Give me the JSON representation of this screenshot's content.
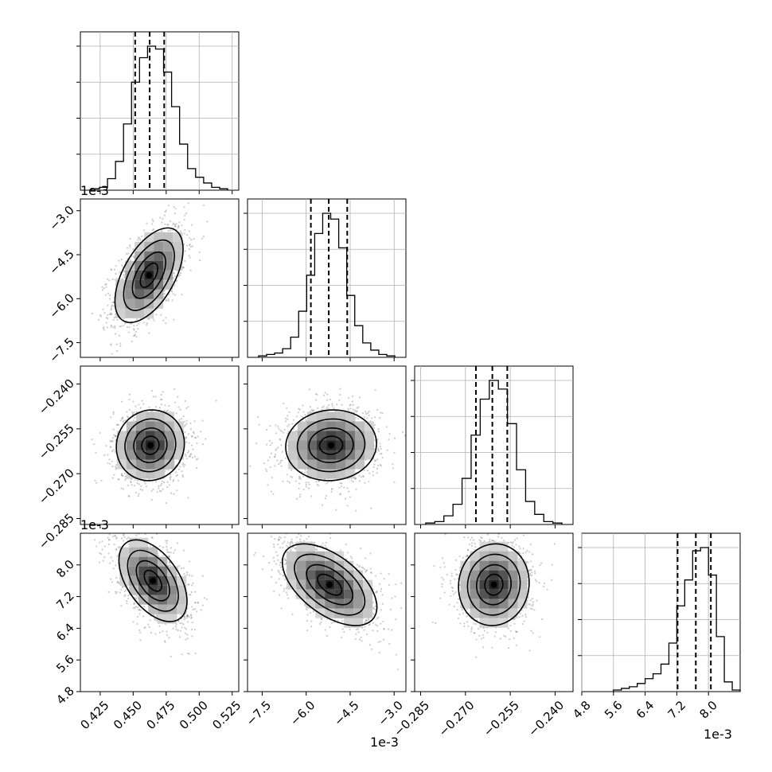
{
  "figure": {
    "offset_labels": {
      "y_row2": "1e-3",
      "y_row4": "1e-3",
      "x_col2": "1e-3",
      "x_col4": "1e-3"
    }
  },
  "chart_data": {
    "type": "corner",
    "parameters": [
      {
        "index": 0,
        "range": [
          0.41,
          0.53
        ],
        "ticks": [
          "0.425",
          "0.450",
          "0.475",
          "0.500",
          "0.525"
        ],
        "tick_values": [
          0.425,
          0.45,
          0.475,
          0.5,
          0.525
        ],
        "offset": ""
      },
      {
        "index": 1,
        "range": [
          -8.0,
          -2.6
        ],
        "ticks": [
          "−7.5",
          "−6.0",
          "−4.5",
          "−3.0"
        ],
        "tick_values": [
          -7.5,
          -6.0,
          -4.5,
          -3.0
        ],
        "offset": "1e-3"
      },
      {
        "index": 2,
        "range": [
          -0.287,
          -0.234
        ],
        "ticks": [
          "−0.285",
          "−0.270",
          "−0.255",
          "−0.240"
        ],
        "tick_values": [
          -0.285,
          -0.27,
          -0.255,
          -0.24
        ],
        "offset": ""
      },
      {
        "index": 3,
        "range": [
          4.8,
          8.8
        ],
        "ticks": [
          "4.8",
          "5.6",
          "6.4",
          "7.2",
          "8.0"
        ],
        "tick_values": [
          4.8,
          5.6,
          6.4,
          7.2,
          8.0
        ],
        "offset": "1e-3"
      }
    ],
    "histograms": [
      {
        "param": 0,
        "counts": [
          1,
          2,
          8,
          20,
          46,
          75,
          92,
          100,
          98,
          82,
          58,
          32,
          15,
          9,
          5,
          2,
          1
        ],
        "quantiles": [
          0.4515,
          0.4625,
          0.4735
        ]
      },
      {
        "param": 1,
        "counts": [
          1,
          2,
          3,
          6,
          14,
          32,
          57,
          86,
          100,
          96,
          76,
          43,
          22,
          10,
          5,
          2,
          1
        ],
        "quantiles": [
          -5.84,
          -5.23,
          -4.6
        ]
      },
      {
        "param": 2,
        "counts": [
          1,
          2,
          6,
          14,
          32,
          62,
          87,
          100,
          94,
          70,
          38,
          16,
          7,
          2,
          1
        ],
        "quantiles": [
          -0.2665,
          -0.261,
          -0.256
        ]
      },
      {
        "param": 3,
        "counts": [
          1,
          2,
          3,
          5,
          8,
          11,
          17,
          30,
          53,
          69,
          87,
          89,
          72,
          34,
          6,
          1
        ],
        "quantiles": [
          7.22,
          7.68,
          8.06
        ]
      }
    ],
    "pairs": [
      {
        "x": 0,
        "y": 1,
        "center": [
          0.462,
          -5.2
        ],
        "sigma": [
          0.012,
          0.75
        ],
        "corr": 0.55
      },
      {
        "x": 0,
        "y": 2,
        "center": [
          0.463,
          -0.2605
        ],
        "sigma": [
          0.012,
          0.0055
        ],
        "corr": 0.05
      },
      {
        "x": 1,
        "y": 2,
        "center": [
          -5.15,
          -0.2605
        ],
        "sigma": [
          0.72,
          0.0055
        ],
        "corr": 0.05
      },
      {
        "x": 0,
        "y": 3,
        "center": [
          0.465,
          7.6
        ],
        "sigma": [
          0.012,
          0.48
        ],
        "corr": -0.5
      },
      {
        "x": 1,
        "y": 3,
        "center": [
          -5.2,
          7.5
        ],
        "sigma": [
          0.75,
          0.48
        ],
        "corr": -0.55
      },
      {
        "x": 2,
        "y": 3,
        "center": [
          -0.2605,
          7.5
        ],
        "sigma": [
          0.0055,
          0.48
        ],
        "corr": 0.05
      }
    ],
    "grid": true
  }
}
